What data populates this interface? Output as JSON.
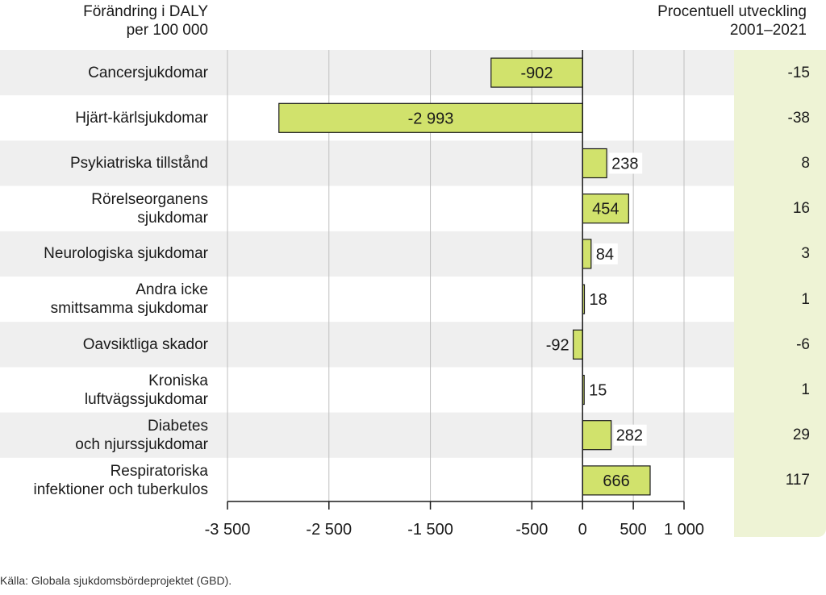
{
  "header": {
    "left_title_line1": "Förändring i DALY",
    "left_title_line2": "per 100 000",
    "right_title_line1": "Procentuell utveckling",
    "right_title_line2": "2001–2021"
  },
  "source": "Källa: Globala sjukdomsbördeprojektet (GBD).",
  "colors": {
    "bar": "#d1e26c",
    "bar_stroke": "#1a1a1a",
    "stripe": "#efefef",
    "grid": "#bfbfbf",
    "panel": "#eef3d5"
  },
  "chart_data": {
    "type": "bar",
    "orientation": "horizontal",
    "xlim": [
      -3500,
      1000
    ],
    "x_ticks": [
      -3500,
      -2500,
      -1500,
      -500,
      0,
      500,
      1000
    ],
    "x_tick_labels": [
      "-3 500",
      "-2 500",
      "-1 500",
      "-500",
      "0",
      "500",
      "1 000"
    ],
    "grid": true,
    "categories": [
      {
        "line1": "Cancersjukdomar",
        "line2": ""
      },
      {
        "line1": "Hjärt-kärlsjukdomar",
        "line2": ""
      },
      {
        "line1": "Psykiatriska tillstånd",
        "line2": ""
      },
      {
        "line1": "Rörelseorganens",
        "line2": "sjukdomar"
      },
      {
        "line1": "Neurologiska sjukdomar",
        "line2": ""
      },
      {
        "line1": "Andra icke",
        "line2": "smittsamma sjukdomar"
      },
      {
        "line1": "Oavsiktliga skador",
        "line2": ""
      },
      {
        "line1": "Kroniska",
        "line2": "luftvägssjukdomar"
      },
      {
        "line1": "Diabetes",
        "line2": "och njurssjukdomar"
      },
      {
        "line1": "Respiratoriska",
        "line2": "infektioner och tuberkulos"
      }
    ],
    "values": [
      -902,
      -2993,
      238,
      454,
      84,
      18,
      -92,
      15,
      282,
      666
    ],
    "value_labels": [
      "-902",
      "-2 993",
      "238",
      "454",
      "84",
      "18",
      "-92",
      "15",
      "282",
      "666"
    ],
    "percent_change": [
      "-15",
      "-38",
      "8",
      "16",
      "3",
      "1",
      "-6",
      "1",
      "29",
      "117"
    ]
  }
}
